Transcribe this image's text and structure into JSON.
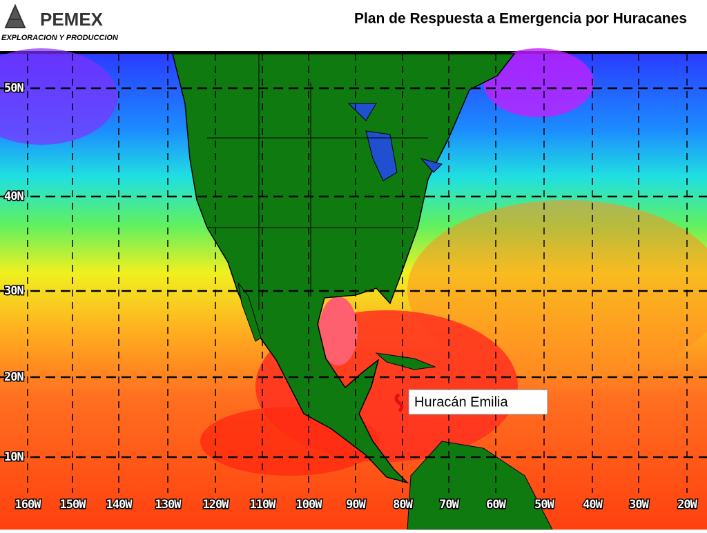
{
  "header": {
    "logo": "PEMEX",
    "subtitle": "EXPLORACION Y PRODUCCION",
    "title": "Plan de Respuesta a Emergencia por Huracanes"
  },
  "map": {
    "lat_labels": [
      "50N",
      "40N",
      "30N",
      "20N",
      "10N"
    ],
    "lon_labels": [
      "160W",
      "150W",
      "140W",
      "130W",
      "120W",
      "110W",
      "100W",
      "90W",
      "80W",
      "70W",
      "60W",
      "50W",
      "40W",
      "30W",
      "20W"
    ],
    "annotation": "Huracán Emilia"
  }
}
